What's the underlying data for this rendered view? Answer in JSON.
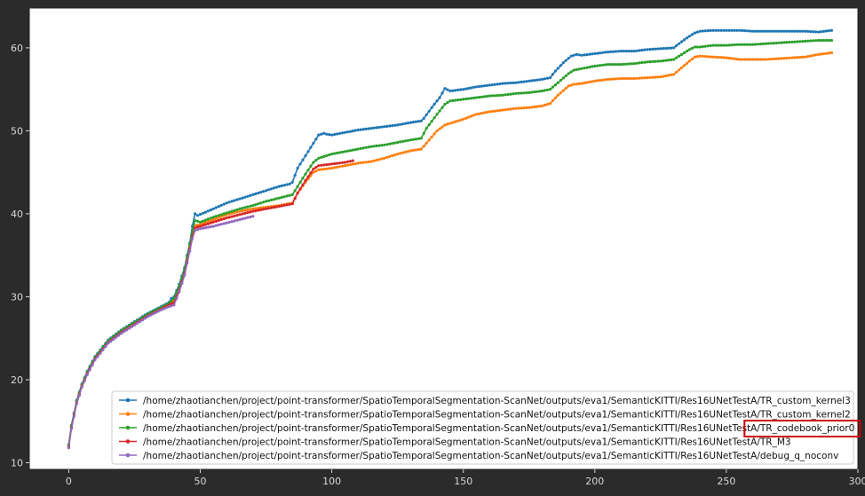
{
  "chart_data": {
    "type": "line",
    "title": "",
    "xlabel": "",
    "ylabel": "",
    "xlim": [
      -15,
      300
    ],
    "ylim": [
      9.2,
      64.8
    ],
    "xticks": [
      0,
      50,
      100,
      150,
      200,
      250,
      300
    ],
    "yticks": [
      10,
      20,
      30,
      40,
      50,
      60
    ],
    "grid": false,
    "legend_position": "lower-right",
    "series": [
      {
        "name": "/home/zhaotianchen/project/point-transformer/SpatioTemporalSegmentation-ScanNet/outputs/eva1/SemanticKITTI/Res16UNetTestA/TR_custom_kernel3",
        "color": "#1f77b4",
        "points": [
          [
            0,
            12.2
          ],
          [
            1,
            14.5
          ],
          [
            2,
            16.0
          ],
          [
            3,
            17.5
          ],
          [
            5,
            19.5
          ],
          [
            7,
            21.0
          ],
          [
            10,
            22.8
          ],
          [
            15,
            24.8
          ],
          [
            20,
            26.0
          ],
          [
            25,
            27.0
          ],
          [
            30,
            28.0
          ],
          [
            35,
            28.8
          ],
          [
            38,
            29.3
          ],
          [
            39,
            29.8
          ],
          [
            40,
            30.0
          ],
          [
            42,
            31.5
          ],
          [
            44,
            33.5
          ],
          [
            46,
            36.5
          ],
          [
            47,
            38.5
          ],
          [
            48,
            40.0
          ],
          [
            49,
            39.8
          ],
          [
            55,
            40.6
          ],
          [
            60,
            41.3
          ],
          [
            65,
            41.8
          ],
          [
            70,
            42.3
          ],
          [
            75,
            42.8
          ],
          [
            80,
            43.3
          ],
          [
            84,
            43.6
          ],
          [
            85,
            43.8
          ],
          [
            87,
            45.5
          ],
          [
            90,
            47.0
          ],
          [
            93,
            48.5
          ],
          [
            95,
            49.5
          ],
          [
            97,
            49.7
          ],
          [
            98,
            49.6
          ],
          [
            100,
            49.5
          ],
          [
            105,
            49.8
          ],
          [
            110,
            50.1
          ],
          [
            115,
            50.3
          ],
          [
            120,
            50.5
          ],
          [
            125,
            50.7
          ],
          [
            130,
            51.0
          ],
          [
            134,
            51.2
          ],
          [
            135,
            51.5
          ],
          [
            138,
            52.8
          ],
          [
            141,
            54.0
          ],
          [
            143,
            55.1
          ],
          [
            145,
            54.8
          ],
          [
            150,
            55.0
          ],
          [
            155,
            55.3
          ],
          [
            160,
            55.5
          ],
          [
            165,
            55.7
          ],
          [
            170,
            55.8
          ],
          [
            175,
            56.0
          ],
          [
            180,
            56.2
          ],
          [
            183,
            56.4
          ],
          [
            185,
            57.2
          ],
          [
            188,
            58.2
          ],
          [
            191,
            59.0
          ],
          [
            193,
            59.2
          ],
          [
            195,
            59.1
          ],
          [
            200,
            59.3
          ],
          [
            205,
            59.5
          ],
          [
            210,
            59.6
          ],
          [
            215,
            59.6
          ],
          [
            220,
            59.8
          ],
          [
            225,
            59.9
          ],
          [
            230,
            60.0
          ],
          [
            232,
            60.5
          ],
          [
            235,
            61.2
          ],
          [
            238,
            61.8
          ],
          [
            240,
            62.0
          ],
          [
            245,
            62.1
          ],
          [
            250,
            62.1
          ],
          [
            255,
            62.1
          ],
          [
            260,
            62.0
          ],
          [
            270,
            62.0
          ],
          [
            280,
            62.0
          ],
          [
            285,
            61.9
          ],
          [
            290,
            62.1
          ]
        ]
      },
      {
        "name": "/home/zhaotianchen/project/point-transformer/SpatioTemporalSegmentation-ScanNet/outputs/eva1/SemanticKITTI/Res16UNetTestA/TR_custom_kernel2",
        "color": "#ff7f0e",
        "points": [
          [
            0,
            12.0
          ],
          [
            1,
            14.3
          ],
          [
            2,
            15.8
          ],
          [
            3,
            17.3
          ],
          [
            5,
            19.3
          ],
          [
            7,
            20.8
          ],
          [
            10,
            22.6
          ],
          [
            15,
            24.6
          ],
          [
            20,
            25.8
          ],
          [
            25,
            26.8
          ],
          [
            30,
            27.8
          ],
          [
            35,
            28.6
          ],
          [
            38,
            29.0
          ],
          [
            40,
            29.5
          ],
          [
            42,
            31.0
          ],
          [
            44,
            33.0
          ],
          [
            46,
            36.0
          ],
          [
            47,
            37.5
          ],
          [
            48,
            38.6
          ],
          [
            50,
            38.7
          ],
          [
            55,
            39.3
          ],
          [
            60,
            39.9
          ],
          [
            65,
            40.3
          ],
          [
            70,
            40.6
          ],
          [
            75,
            40.8
          ],
          [
            80,
            41.0
          ],
          [
            85,
            41.3
          ],
          [
            87,
            42.5
          ],
          [
            90,
            43.8
          ],
          [
            93,
            45.0
          ],
          [
            95,
            45.3
          ],
          [
            100,
            45.5
          ],
          [
            105,
            45.8
          ],
          [
            110,
            46.1
          ],
          [
            115,
            46.3
          ],
          [
            120,
            46.7
          ],
          [
            125,
            47.2
          ],
          [
            130,
            47.6
          ],
          [
            134,
            47.8
          ],
          [
            136,
            48.5
          ],
          [
            140,
            50.0
          ],
          [
            143,
            50.7
          ],
          [
            145,
            50.9
          ],
          [
            150,
            51.4
          ],
          [
            155,
            52.0
          ],
          [
            160,
            52.3
          ],
          [
            165,
            52.5
          ],
          [
            170,
            52.7
          ],
          [
            175,
            52.8
          ],
          [
            180,
            53.0
          ],
          [
            183,
            53.3
          ],
          [
            186,
            54.3
          ],
          [
            190,
            55.4
          ],
          [
            192,
            55.6
          ],
          [
            195,
            55.7
          ],
          [
            200,
            56.0
          ],
          [
            205,
            56.2
          ],
          [
            210,
            56.3
          ],
          [
            215,
            56.3
          ],
          [
            220,
            56.4
          ],
          [
            225,
            56.5
          ],
          [
            230,
            56.8
          ],
          [
            233,
            57.6
          ],
          [
            236,
            58.4
          ],
          [
            238,
            58.9
          ],
          [
            240,
            59.0
          ],
          [
            245,
            58.9
          ],
          [
            250,
            58.8
          ],
          [
            255,
            58.6
          ],
          [
            260,
            58.6
          ],
          [
            265,
            58.6
          ],
          [
            270,
            58.7
          ],
          [
            275,
            58.8
          ],
          [
            280,
            58.9
          ],
          [
            285,
            59.2
          ],
          [
            290,
            59.4
          ]
        ]
      },
      {
        "name": "/home/zhaotianchen/project/point-transformer/SpatioTemporalSegmentation-ScanNet/outputs/eva1/SemanticKITTI/Res16UNetTestA/TR_codebook_prior0",
        "color": "#2ca02c",
        "points": [
          [
            0,
            12.1
          ],
          [
            1,
            14.4
          ],
          [
            2,
            15.9
          ],
          [
            3,
            17.4
          ],
          [
            5,
            19.4
          ],
          [
            7,
            20.9
          ],
          [
            10,
            22.7
          ],
          [
            15,
            24.7
          ],
          [
            20,
            25.9
          ],
          [
            25,
            26.9
          ],
          [
            30,
            27.9
          ],
          [
            35,
            28.7
          ],
          [
            38,
            29.2
          ],
          [
            40,
            29.8
          ],
          [
            42,
            31.3
          ],
          [
            44,
            33.3
          ],
          [
            46,
            36.3
          ],
          [
            47,
            38.0
          ],
          [
            48,
            39.2
          ],
          [
            50,
            39.0
          ],
          [
            55,
            39.6
          ],
          [
            60,
            40.1
          ],
          [
            65,
            40.6
          ],
          [
            70,
            41.0
          ],
          [
            75,
            41.5
          ],
          [
            80,
            41.9
          ],
          [
            85,
            42.3
          ],
          [
            87,
            43.3
          ],
          [
            90,
            44.8
          ],
          [
            93,
            46.2
          ],
          [
            95,
            46.7
          ],
          [
            100,
            47.2
          ],
          [
            105,
            47.5
          ],
          [
            110,
            47.8
          ],
          [
            115,
            48.1
          ],
          [
            120,
            48.3
          ],
          [
            125,
            48.6
          ],
          [
            130,
            48.9
          ],
          [
            134,
            49.1
          ],
          [
            136,
            50.3
          ],
          [
            140,
            52.0
          ],
          [
            143,
            53.2
          ],
          [
            145,
            53.6
          ],
          [
            150,
            53.8
          ],
          [
            155,
            54.0
          ],
          [
            160,
            54.2
          ],
          [
            165,
            54.3
          ],
          [
            170,
            54.5
          ],
          [
            175,
            54.6
          ],
          [
            180,
            54.8
          ],
          [
            183,
            55.0
          ],
          [
            186,
            55.8
          ],
          [
            190,
            56.9
          ],
          [
            192,
            57.3
          ],
          [
            195,
            57.5
          ],
          [
            200,
            57.8
          ],
          [
            205,
            58.0
          ],
          [
            210,
            58.0
          ],
          [
            215,
            58.1
          ],
          [
            220,
            58.3
          ],
          [
            225,
            58.4
          ],
          [
            230,
            58.6
          ],
          [
            233,
            59.2
          ],
          [
            236,
            59.8
          ],
          [
            238,
            60.1
          ],
          [
            240,
            60.1
          ],
          [
            245,
            60.3
          ],
          [
            250,
            60.3
          ],
          [
            255,
            60.4
          ],
          [
            260,
            60.4
          ],
          [
            265,
            60.5
          ],
          [
            270,
            60.6
          ],
          [
            275,
            60.7
          ],
          [
            280,
            60.8
          ],
          [
            285,
            60.9
          ],
          [
            290,
            60.9
          ]
        ]
      },
      {
        "name": "/home/zhaotianchen/project/point-transformer/SpatioTemporalSegmentation-ScanNet/outputs/eva1/SemanticKITTI/Res16UNetTestA/TR_M3",
        "color": "#d62728",
        "points": [
          [
            0,
            11.9
          ],
          [
            1,
            14.2
          ],
          [
            2,
            15.7
          ],
          [
            3,
            17.2
          ],
          [
            5,
            19.2
          ],
          [
            7,
            20.7
          ],
          [
            10,
            22.5
          ],
          [
            15,
            24.5
          ],
          [
            20,
            25.7
          ],
          [
            25,
            26.7
          ],
          [
            30,
            27.7
          ],
          [
            35,
            28.5
          ],
          [
            38,
            29.0
          ],
          [
            40,
            29.3
          ],
          [
            42,
            30.8
          ],
          [
            44,
            32.8
          ],
          [
            46,
            35.8
          ],
          [
            47,
            37.3
          ],
          [
            48,
            38.3
          ],
          [
            50,
            38.5
          ],
          [
            55,
            39.0
          ],
          [
            60,
            39.5
          ],
          [
            65,
            39.9
          ],
          [
            70,
            40.3
          ],
          [
            75,
            40.6
          ],
          [
            80,
            40.9
          ],
          [
            85,
            41.2
          ],
          [
            87,
            42.5
          ],
          [
            90,
            44.0
          ],
          [
            93,
            45.4
          ],
          [
            95,
            45.8
          ],
          [
            100,
            46.0
          ],
          [
            105,
            46.2
          ],
          [
            108,
            46.4
          ]
        ]
      },
      {
        "name": "/home/zhaotianchen/project/point-transformer/SpatioTemporalSegmentation-ScanNet/outputs/eva1/SemanticKITTI/Res16UNetTestA/debug_q_noconv",
        "color": "#9467bd",
        "points": [
          [
            0,
            11.8
          ],
          [
            1,
            14.1
          ],
          [
            2,
            15.6
          ],
          [
            3,
            17.1
          ],
          [
            5,
            19.1
          ],
          [
            7,
            20.6
          ],
          [
            10,
            22.4
          ],
          [
            15,
            24.4
          ],
          [
            20,
            25.6
          ],
          [
            25,
            26.6
          ],
          [
            30,
            27.6
          ],
          [
            35,
            28.4
          ],
          [
            38,
            28.8
          ],
          [
            40,
            29.0
          ],
          [
            42,
            30.6
          ],
          [
            44,
            32.6
          ],
          [
            46,
            35.5
          ],
          [
            47,
            37.0
          ],
          [
            48,
            38.0
          ],
          [
            50,
            38.2
          ],
          [
            55,
            38.5
          ],
          [
            60,
            38.9
          ],
          [
            65,
            39.3
          ],
          [
            70,
            39.7
          ]
        ]
      }
    ]
  },
  "annotation": {
    "highlight_color": "#cc0000"
  }
}
